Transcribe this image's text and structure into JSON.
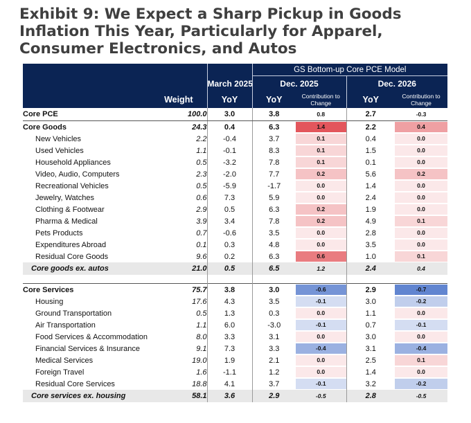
{
  "title": "Exhibit 9: We Expect a Sharp Pickup in Goods Inflation This Year, Particularly for Apparel, Consumer Electronics, and Autos",
  "header": {
    "group": "GS Bottom-up Core PCE Model",
    "periods": [
      "March 2025",
      "Dec. 2025",
      "Dec. 2026"
    ],
    "weight": "Weight",
    "yoy": "YoY",
    "contribution": "Contribution to Change"
  },
  "colors": {
    "header_bg": "#0b2454",
    "positive": "#e0444a",
    "negative": "#3a66c4",
    "summary_bg": "#e8e8e8"
  },
  "core_pce": {
    "label": "Core PCE",
    "weight": "100.0",
    "mar25": "3.0",
    "dec25": "3.8",
    "c25": "0.8",
    "dec26": "2.7",
    "c26": "-0.3"
  },
  "goods": [
    {
      "label": "Core Goods",
      "weight": "24.3",
      "mar25": "0.4",
      "dec25": "6.3",
      "c25": "1.4",
      "dec26": "2.2",
      "c26": "0.4",
      "bold": true
    },
    {
      "label": "New Vehicles",
      "weight": "2.2",
      "mar25": "-0.4",
      "dec25": "3.7",
      "c25": "0.1",
      "dec26": "0.4",
      "c26": "0.0"
    },
    {
      "label": "Used Vehicles",
      "weight": "1.1",
      "mar25": "-0.1",
      "dec25": "8.3",
      "c25": "0.1",
      "dec26": "1.5",
      "c26": "0.0"
    },
    {
      "label": "Household Appliances",
      "weight": "0.5",
      "mar25": "-3.2",
      "dec25": "7.8",
      "c25": "0.1",
      "dec26": "0.1",
      "c26": "0.0"
    },
    {
      "label": "Video, Audio, Computers",
      "weight": "2.3",
      "mar25": "-2.0",
      "dec25": "7.7",
      "c25": "0.2",
      "dec26": "5.6",
      "c26": "0.2"
    },
    {
      "label": "Recreational Vehicles",
      "weight": "0.5",
      "mar25": "-5.9",
      "dec25": "-1.7",
      "c25": "0.0",
      "dec26": "1.4",
      "c26": "0.0"
    },
    {
      "label": "Jewelry, Watches",
      "weight": "0.6",
      "mar25": "7.3",
      "dec25": "5.9",
      "c25": "0.0",
      "dec26": "2.4",
      "c26": "0.0"
    },
    {
      "label": "Clothing & Footwear",
      "weight": "2.9",
      "mar25": "0.5",
      "dec25": "6.3",
      "c25": "0.2",
      "dec26": "1.9",
      "c26": "0.0"
    },
    {
      "label": "Pharma & Medical",
      "weight": "3.9",
      "mar25": "3.4",
      "dec25": "7.8",
      "c25": "0.2",
      "dec26": "4.9",
      "c26": "0.1"
    },
    {
      "label": "Pets Products",
      "weight": "0.7",
      "mar25": "-0.6",
      "dec25": "3.5",
      "c25": "0.0",
      "dec26": "2.8",
      "c26": "0.0"
    },
    {
      "label": "Expenditures Abroad",
      "weight": "0.1",
      "mar25": "0.3",
      "dec25": "4.8",
      "c25": "0.0",
      "dec26": "3.5",
      "c26": "0.0"
    },
    {
      "label": "Residual Core Goods",
      "weight": "9.6",
      "mar25": "0.2",
      "dec25": "6.3",
      "c25": "0.6",
      "dec26": "1.0",
      "c26": "0.1"
    }
  ],
  "goods_summary": {
    "label": "Core goods ex. autos",
    "weight": "21.0",
    "mar25": "0.5",
    "dec25": "6.5",
    "c25": "1.2",
    "dec26": "2.4",
    "c26": "0.4"
  },
  "services": [
    {
      "label": "Core Services",
      "weight": "75.7",
      "mar25": "3.8",
      "dec25": "3.0",
      "c25": "-0.6",
      "dec26": "2.9",
      "c26": "-0.7",
      "bold": true
    },
    {
      "label": "Housing",
      "weight": "17.6",
      "mar25": "4.3",
      "dec25": "3.5",
      "c25": "-0.1",
      "dec26": "3.0",
      "c26": "-0.2"
    },
    {
      "label": "Ground Transportation",
      "weight": "0.5",
      "mar25": "1.3",
      "dec25": "0.3",
      "c25": "0.0",
      "dec26": "1.1",
      "c26": "0.0"
    },
    {
      "label": "Air Transportation",
      "weight": "1.1",
      "mar25": "6.0",
      "dec25": "-3.0",
      "c25": "-0.1",
      "dec26": "0.7",
      "c26": "-0.1"
    },
    {
      "label": "Food Services & Accommodation",
      "weight": "8.0",
      "mar25": "3.3",
      "dec25": "3.1",
      "c25": "0.0",
      "dec26": "3.0",
      "c26": "0.0"
    },
    {
      "label": "Financial Services & Insurance",
      "weight": "9.1",
      "mar25": "7.3",
      "dec25": "3.3",
      "c25": "-0.4",
      "dec26": "3.1",
      "c26": "-0.4"
    },
    {
      "label": "Medical Services",
      "weight": "19.0",
      "mar25": "1.9",
      "dec25": "2.1",
      "c25": "0.0",
      "dec26": "2.5",
      "c26": "0.1"
    },
    {
      "label": "Foreign Travel",
      "weight": "1.6",
      "mar25": "-1.1",
      "dec25": "1.2",
      "c25": "0.0",
      "dec26": "1.4",
      "c26": "0.0"
    },
    {
      "label": "Residual Core Services",
      "weight": "18.8",
      "mar25": "4.1",
      "dec25": "3.7",
      "c25": "-0.1",
      "dec26": "3.2",
      "c26": "-0.2"
    }
  ],
  "services_summary": {
    "label": "Core services ex. housing",
    "weight": "58.1",
    "mar25": "3.6",
    "dec25": "2.9",
    "c25": "-0.5",
    "dec26": "2.8",
    "c26": "-0.5"
  }
}
